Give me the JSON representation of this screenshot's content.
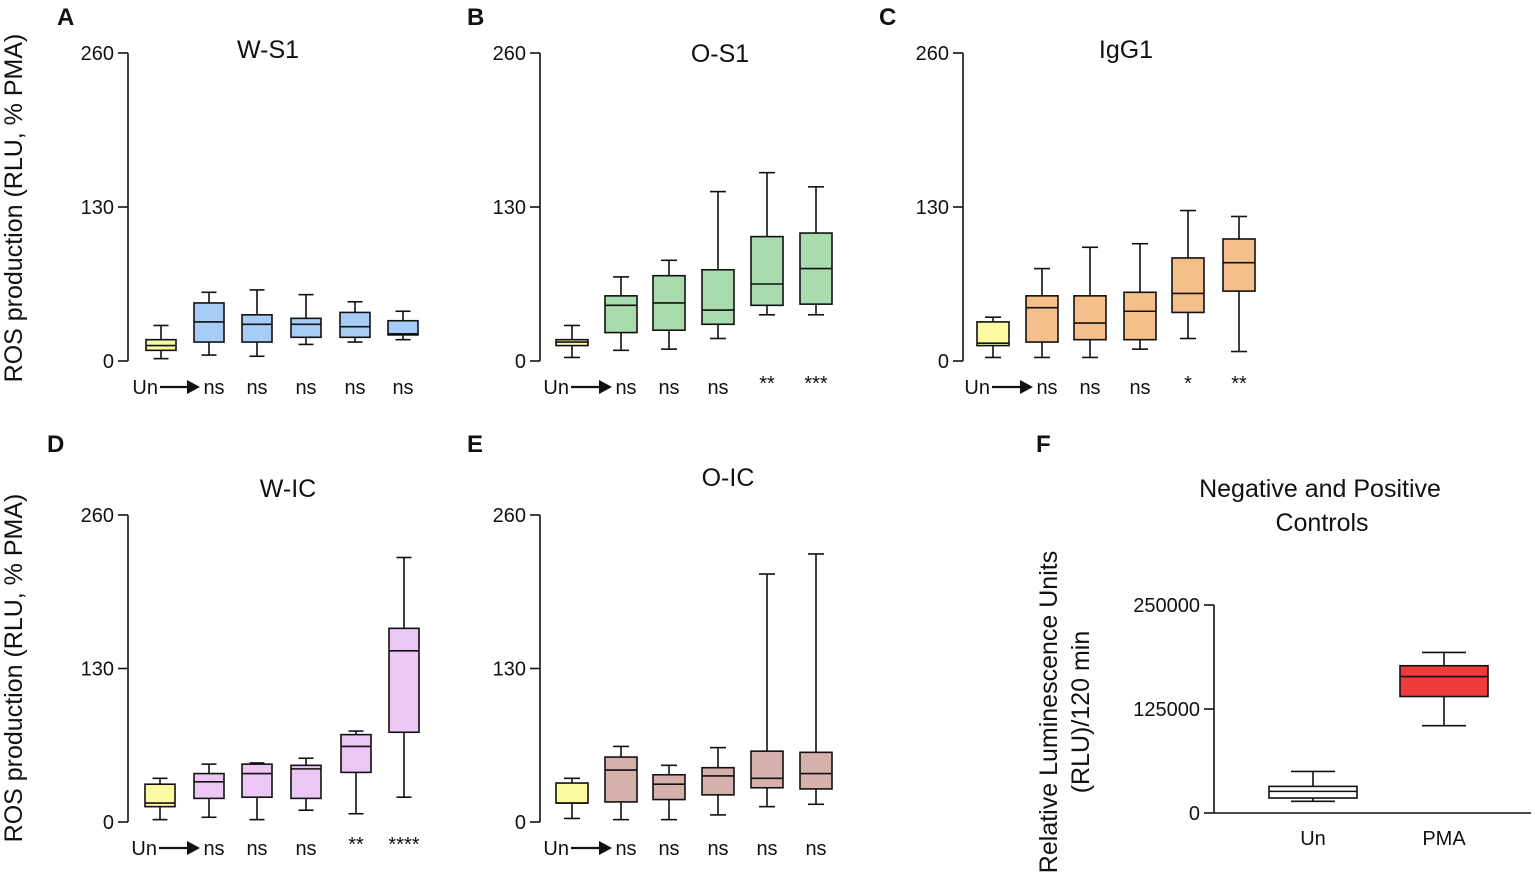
{
  "y_axis_label": "ROS production (RLU, % PMA)",
  "colors": {
    "W-S1": "#a7cdf6",
    "O-S1": "#a8dcae",
    "IgG1": "#f4bf8a",
    "W-IC": "#ebc7f5",
    "O-IC": "#d6b1ac",
    "untreated": "#fbfaa2",
    "PMA": "#ee3b3b",
    "negative": "#ffffff"
  },
  "chart_data": [
    {
      "panel": "A",
      "type": "box",
      "title": "W-S1",
      "ylim": [
        0,
        260
      ],
      "yticks": [
        "0",
        "130",
        "260"
      ],
      "categories": [
        "Un",
        "ns",
        "ns",
        "ns",
        "ns",
        "ns"
      ],
      "arrow_after_first": true,
      "boxes": [
        {
          "min": 2,
          "q1": 9,
          "median": 13,
          "q3": 18,
          "max": 30
        },
        {
          "min": 5,
          "q1": 16,
          "median": 33,
          "q3": 49,
          "max": 58
        },
        {
          "min": 4,
          "q1": 16,
          "median": 31,
          "q3": 39,
          "max": 60
        },
        {
          "min": 14,
          "q1": 20,
          "median": 31,
          "q3": 36,
          "max": 56
        },
        {
          "min": 16,
          "q1": 20,
          "median": 29,
          "q3": 41,
          "max": 50
        },
        {
          "min": 18,
          "q1": 22,
          "median": 23,
          "q3": 34,
          "max": 42
        }
      ]
    },
    {
      "panel": "B",
      "type": "box",
      "title": "O-S1",
      "ylim": [
        0,
        260
      ],
      "yticks": [
        "0",
        "130",
        "260"
      ],
      "categories": [
        "Un",
        "ns",
        "ns",
        "ns",
        "**",
        "***"
      ],
      "arrow_after_first": true,
      "boxes": [
        {
          "min": 3,
          "q1": 13,
          "median": 16,
          "q3": 18,
          "max": 30
        },
        {
          "min": 9,
          "q1": 24,
          "median": 47,
          "q3": 55,
          "max": 71
        },
        {
          "min": 10,
          "q1": 26,
          "median": 49,
          "q3": 72,
          "max": 85
        },
        {
          "min": 19,
          "q1": 31,
          "median": 43,
          "q3": 77,
          "max": 143
        },
        {
          "min": 39,
          "q1": 47,
          "median": 65,
          "q3": 105,
          "max": 159
        },
        {
          "min": 39,
          "q1": 48,
          "median": 78,
          "q3": 108,
          "max": 147
        }
      ]
    },
    {
      "panel": "C",
      "type": "box",
      "title": "IgG1",
      "ylim": [
        0,
        260
      ],
      "yticks": [
        "0",
        "130",
        "260"
      ],
      "categories": [
        "Un",
        "ns",
        "ns",
        "ns",
        "*",
        "**"
      ],
      "arrow_after_first": true,
      "boxes": [
        {
          "min": 3,
          "q1": 13,
          "median": 15,
          "q3": 33,
          "max": 37
        },
        {
          "min": 3,
          "q1": 16,
          "median": 45,
          "q3": 55,
          "max": 78
        },
        {
          "min": 3,
          "q1": 18,
          "median": 32,
          "q3": 55,
          "max": 96
        },
        {
          "min": 10,
          "q1": 18,
          "median": 42,
          "q3": 58,
          "max": 99
        },
        {
          "min": 19,
          "q1": 41,
          "median": 57,
          "q3": 87,
          "max": 127
        },
        {
          "min": 8,
          "q1": 59,
          "median": 83,
          "q3": 103,
          "max": 122
        }
      ]
    },
    {
      "panel": "D",
      "type": "box",
      "title": "W-IC",
      "ylim": [
        0,
        260
      ],
      "yticks": [
        "0",
        "130",
        "260"
      ],
      "categories": [
        "Un",
        "ns",
        "ns",
        "ns",
        "**",
        "****"
      ],
      "arrow_after_first": true,
      "boxes": [
        {
          "min": 2,
          "q1": 13,
          "median": 16,
          "q3": 32,
          "max": 37
        },
        {
          "min": 4,
          "q1": 20,
          "median": 34,
          "q3": 41,
          "max": 49
        },
        {
          "min": 2,
          "q1": 21,
          "median": 41,
          "q3": 49,
          "max": 50
        },
        {
          "min": 10,
          "q1": 20,
          "median": 45,
          "q3": 48,
          "max": 54
        },
        {
          "min": 7,
          "q1": 42,
          "median": 64,
          "q3": 74,
          "max": 77
        },
        {
          "min": 21,
          "q1": 76,
          "median": 145,
          "q3": 164,
          "max": 224
        }
      ]
    },
    {
      "panel": "E",
      "type": "box",
      "title": "O-IC",
      "ylim": [
        0,
        260
      ],
      "yticks": [
        "0",
        "130",
        "260"
      ],
      "categories": [
        "Un",
        "ns",
        "ns",
        "ns",
        "ns",
        "ns"
      ],
      "arrow_after_first": true,
      "boxes": [
        {
          "min": 3,
          "q1": 16,
          "median": 16,
          "q3": 33,
          "max": 37
        },
        {
          "min": 2,
          "q1": 17,
          "median": 44,
          "q3": 55,
          "max": 64
        },
        {
          "min": 2,
          "q1": 19,
          "median": 32,
          "q3": 40,
          "max": 48
        },
        {
          "min": 6,
          "q1": 23,
          "median": 39,
          "q3": 46,
          "max": 63
        },
        {
          "min": 13,
          "q1": 29,
          "median": 37,
          "q3": 60,
          "max": 210
        },
        {
          "min": 15,
          "q1": 28,
          "median": 41,
          "q3": 59,
          "max": 227
        }
      ]
    },
    {
      "panel": "F",
      "type": "box",
      "title": "Negative and Positive Controls",
      "title_lines": [
        "Negative and Positive",
        "Controls"
      ],
      "ylabel_lines": [
        "Relative Luminescence Units",
        "(RLU)/120 min"
      ],
      "ylim": [
        0,
        250000
      ],
      "yticks": [
        "0",
        "125000",
        "250000"
      ],
      "categories": [
        "Un",
        "PMA"
      ],
      "arrow_after_first": false,
      "boxes": [
        {
          "min": 14000,
          "q1": 18000,
          "median": 26000,
          "q3": 32000,
          "max": 50000
        },
        {
          "min": 105000,
          "q1": 140000,
          "median": 164000,
          "q3": 177000,
          "max": 193000
        }
      ]
    }
  ]
}
